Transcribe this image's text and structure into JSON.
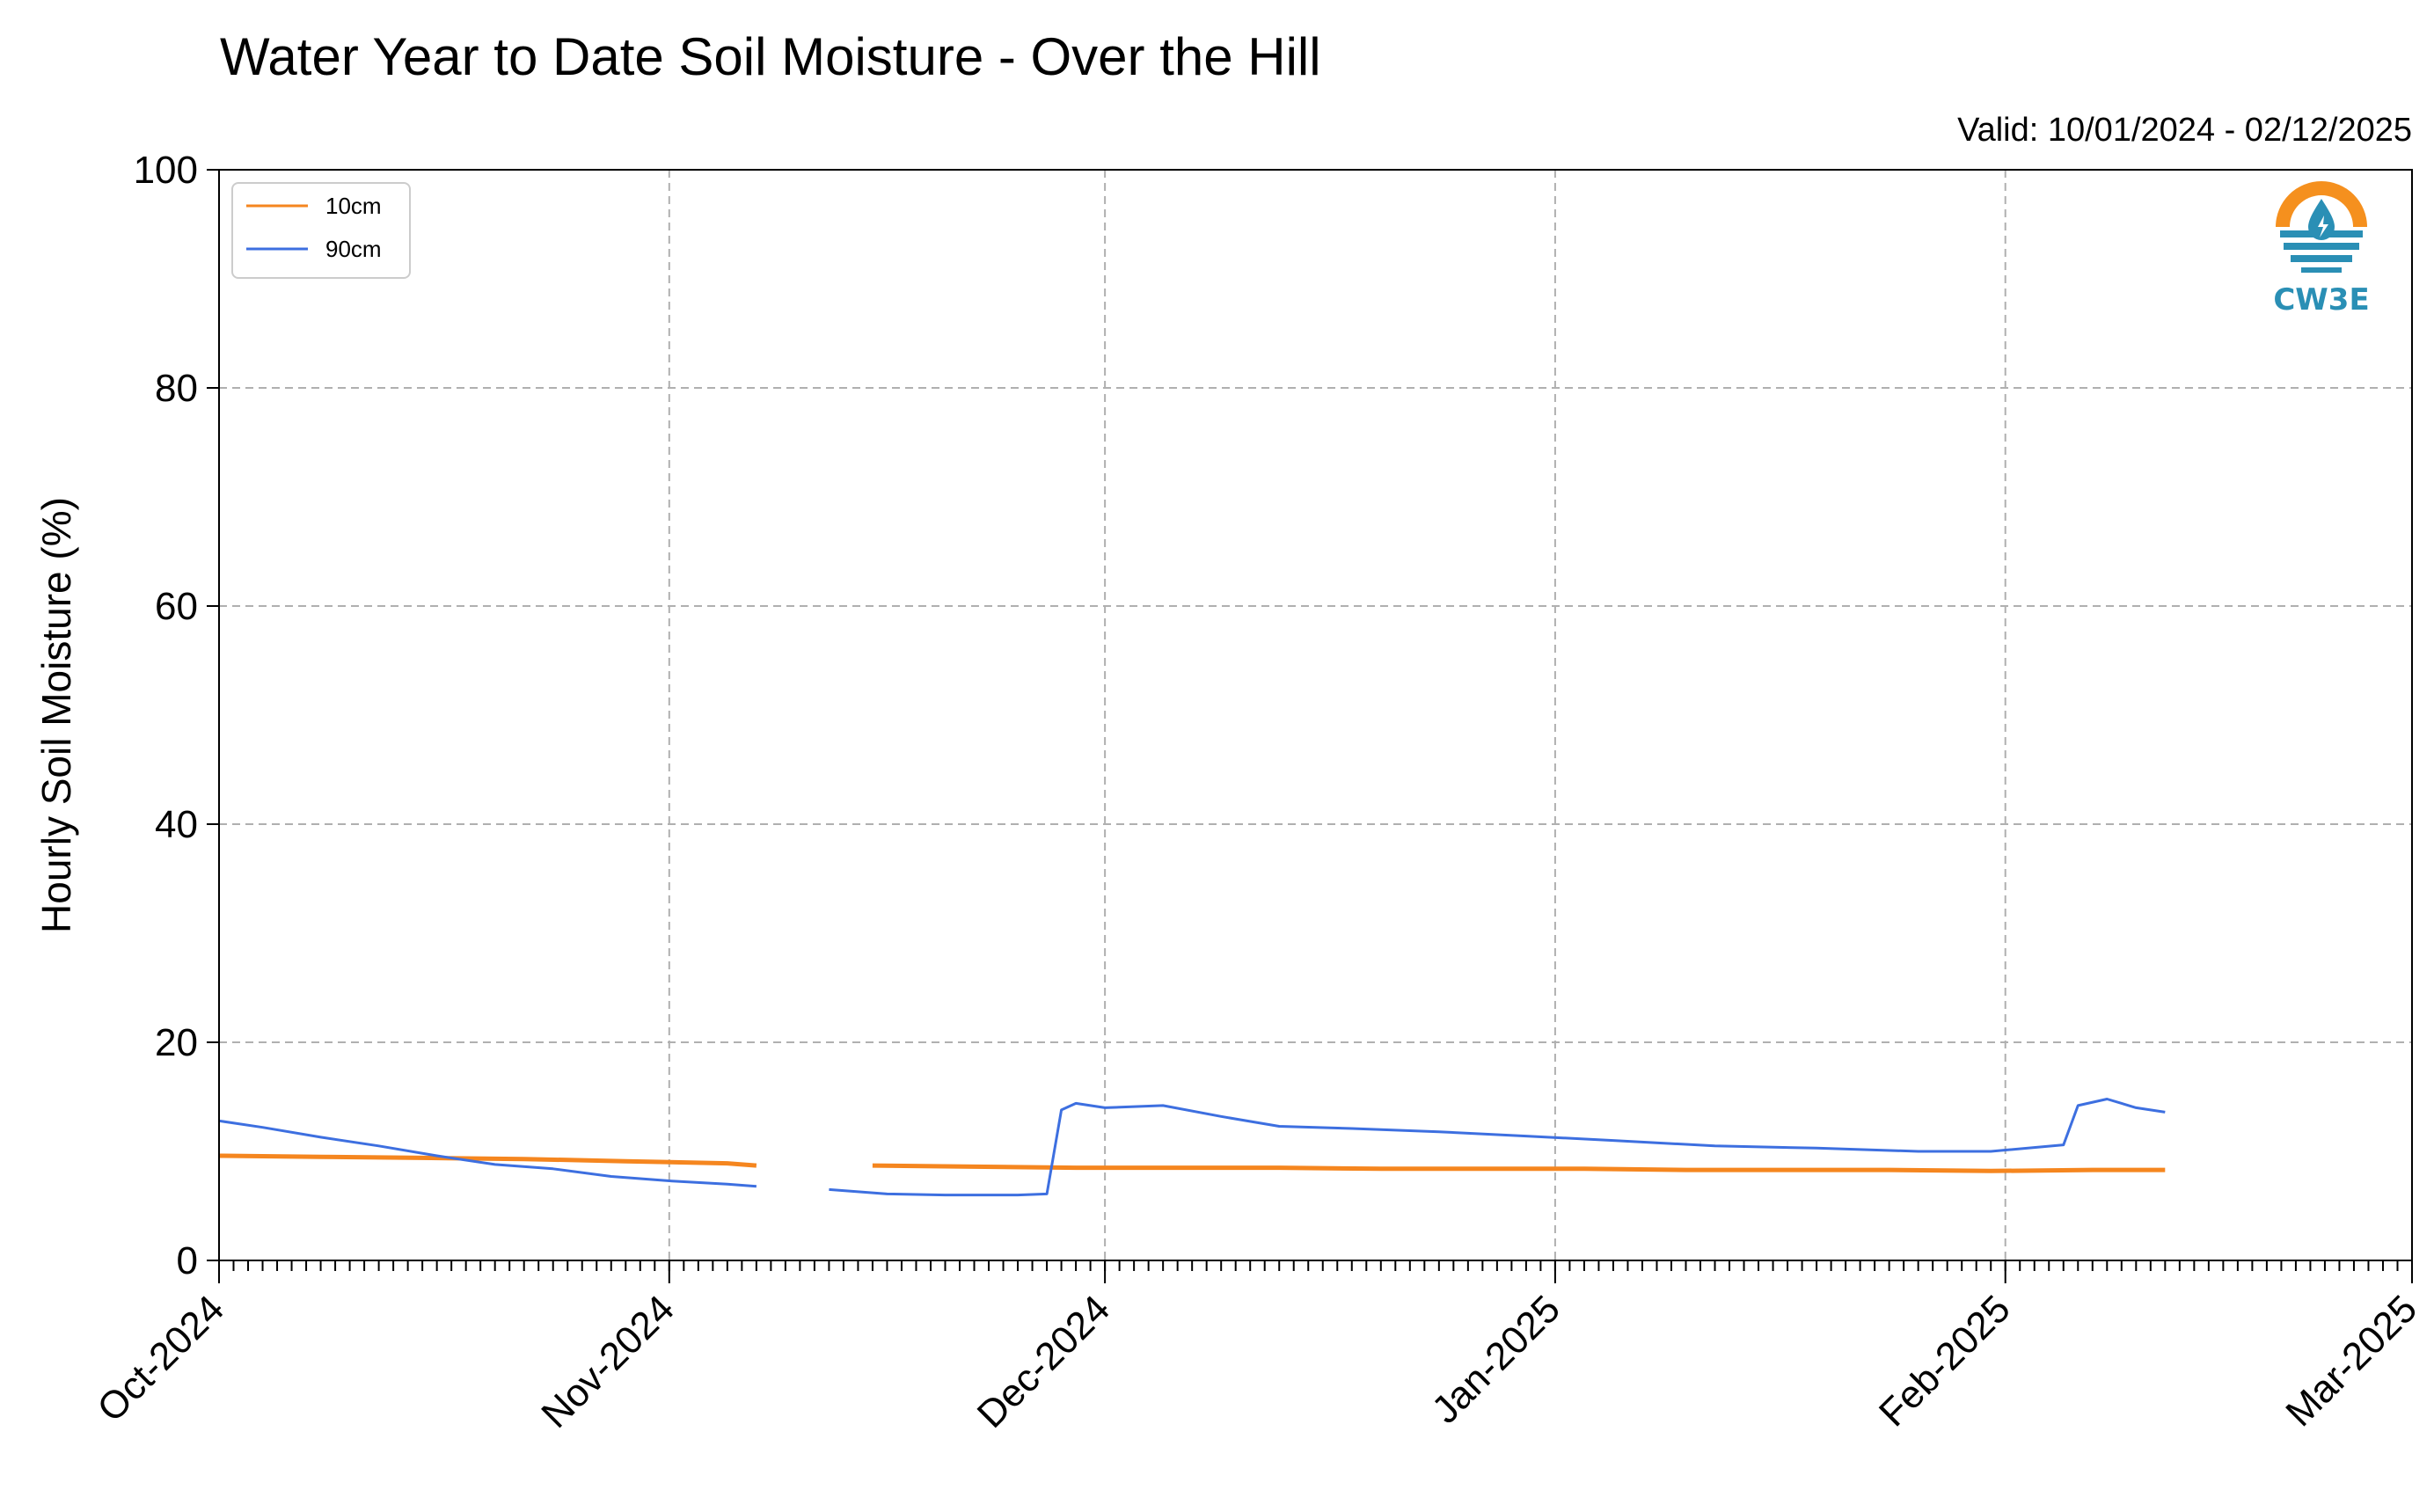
{
  "chart_data": {
    "type": "line",
    "title": "Water Year to Date Soil Moisture - Over the Hill",
    "valid_label": "Valid: 10/01/2024 - 02/12/2025",
    "xlabel": "",
    "ylabel": "Hourly Soil Moisture (%)",
    "ylim": [
      0,
      100
    ],
    "yticks": [
      0,
      20,
      40,
      60,
      80,
      100
    ],
    "xlim": [
      "2024-10-01",
      "2025-03-01"
    ],
    "xtick_labels": [
      "Oct-2024",
      "Nov-2024",
      "Dec-2024",
      "Jan-2025",
      "Feb-2025",
      "Mar-2025"
    ],
    "xtick_dates": [
      "2024-10-01",
      "2024-11-01",
      "2024-12-01",
      "2025-01-01",
      "2025-02-01",
      "2025-03-01"
    ],
    "grid": true,
    "legend_position": "top-left",
    "series": [
      {
        "name": "10cm",
        "color": "#f5861f",
        "x": [
          "2024-10-01",
          "2024-10-08",
          "2024-10-15",
          "2024-10-22",
          "2024-10-29",
          "2024-11-05",
          "2024-11-07",
          "2024-11-08",
          "2024-11-15",
          "2024-11-22",
          "2024-11-29",
          "2024-12-06",
          "2024-12-13",
          "2024-12-20",
          "2024-12-27",
          "2025-01-03",
          "2025-01-10",
          "2025-01-17",
          "2025-01-24",
          "2025-01-31",
          "2025-02-07",
          "2025-02-12"
        ],
        "values": [
          9.6,
          9.5,
          9.4,
          9.3,
          9.1,
          8.9,
          8.7,
          null,
          8.7,
          8.6,
          8.5,
          8.5,
          8.5,
          8.4,
          8.4,
          8.4,
          8.3,
          8.3,
          8.3,
          8.2,
          8.3,
          8.3
        ]
      },
      {
        "name": "90cm",
        "color": "#3d6fe0",
        "x": [
          "2024-10-01",
          "2024-10-04",
          "2024-10-08",
          "2024-10-12",
          "2024-10-16",
          "2024-10-20",
          "2024-10-24",
          "2024-10-28",
          "2024-11-01",
          "2024-11-05",
          "2024-11-07",
          "2024-11-08",
          "2024-11-12",
          "2024-11-16",
          "2024-11-20",
          "2024-11-25",
          "2024-11-27",
          "2024-11-28",
          "2024-11-29",
          "2024-12-01",
          "2024-12-05",
          "2024-12-09",
          "2024-12-13",
          "2024-12-18",
          "2024-12-24",
          "2024-12-30",
          "2025-01-05",
          "2025-01-12",
          "2025-01-19",
          "2025-01-26",
          "2025-01-31",
          "2025-02-05",
          "2025-02-06",
          "2025-02-08",
          "2025-02-10",
          "2025-02-12"
        ],
        "values": [
          12.8,
          12.2,
          11.3,
          10.5,
          9.6,
          8.8,
          8.4,
          7.7,
          7.3,
          7.0,
          6.8,
          null,
          6.5,
          6.1,
          6.0,
          6.0,
          6.1,
          13.8,
          14.4,
          14.0,
          14.2,
          13.2,
          12.3,
          12.1,
          11.8,
          11.4,
          11.0,
          10.5,
          10.3,
          10.0,
          10.0,
          10.6,
          14.2,
          14.8,
          14.0,
          13.6
        ]
      }
    ]
  },
  "logo": {
    "text": "CW3E",
    "icon": "cw3e-drop-logo",
    "teal": "#2a8fb5",
    "orange": "#f5901e"
  },
  "colors": {
    "grid": "#b0b0b0",
    "axis": "#000000"
  }
}
